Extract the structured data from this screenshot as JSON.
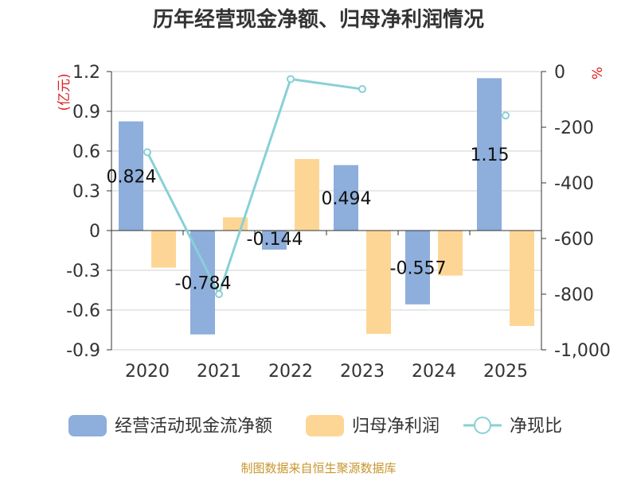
{
  "chart_data": {
    "type": "bar",
    "title": "历年经营现金净额、归母净利润情况",
    "categories": [
      "2020",
      "2021",
      "2022",
      "2023",
      "2024",
      "2025"
    ],
    "series": [
      {
        "name": "经营活动现金流净额",
        "type": "bar",
        "axis": "left",
        "color": "#8eaedb",
        "values": [
          0.824,
          -0.784,
          -0.144,
          0.494,
          -0.557,
          1.15
        ],
        "labels": [
          "0.824",
          "-0.784",
          "-0.144",
          "0.494",
          "-0.557",
          "1.15"
        ]
      },
      {
        "name": "归母净利润",
        "type": "bar",
        "axis": "left",
        "color": "#fdd696",
        "values": [
          -0.28,
          0.1,
          0.54,
          -0.78,
          -0.34,
          -0.72
        ]
      },
      {
        "name": "净现比",
        "type": "line",
        "axis": "right",
        "color": "#88d0d6",
        "values": [
          -290,
          -800,
          -27,
          -63,
          null,
          -158
        ]
      }
    ],
    "y_left": {
      "label": "(亿元)",
      "min": -0.9,
      "max": 1.2,
      "ticks": [
        1.2,
        0.9,
        0.6,
        0.3,
        0,
        -0.3,
        -0.6,
        -0.9
      ],
      "tick_labels": [
        "1.2",
        "0.9",
        "0.6",
        "0.3",
        "0",
        "-0.3",
        "-0.6",
        "-0.9"
      ]
    },
    "y_right": {
      "label": "%",
      "min": -1000,
      "max": 0,
      "ticks": [
        0,
        -200,
        -400,
        -600,
        -800,
        -1000
      ],
      "tick_labels": [
        "0",
        "-200",
        "-400",
        "-600",
        "-800",
        "-1,000"
      ]
    },
    "grid": true,
    "legend_position": "bottom"
  },
  "source": "制图数据来自恒生聚源数据库"
}
